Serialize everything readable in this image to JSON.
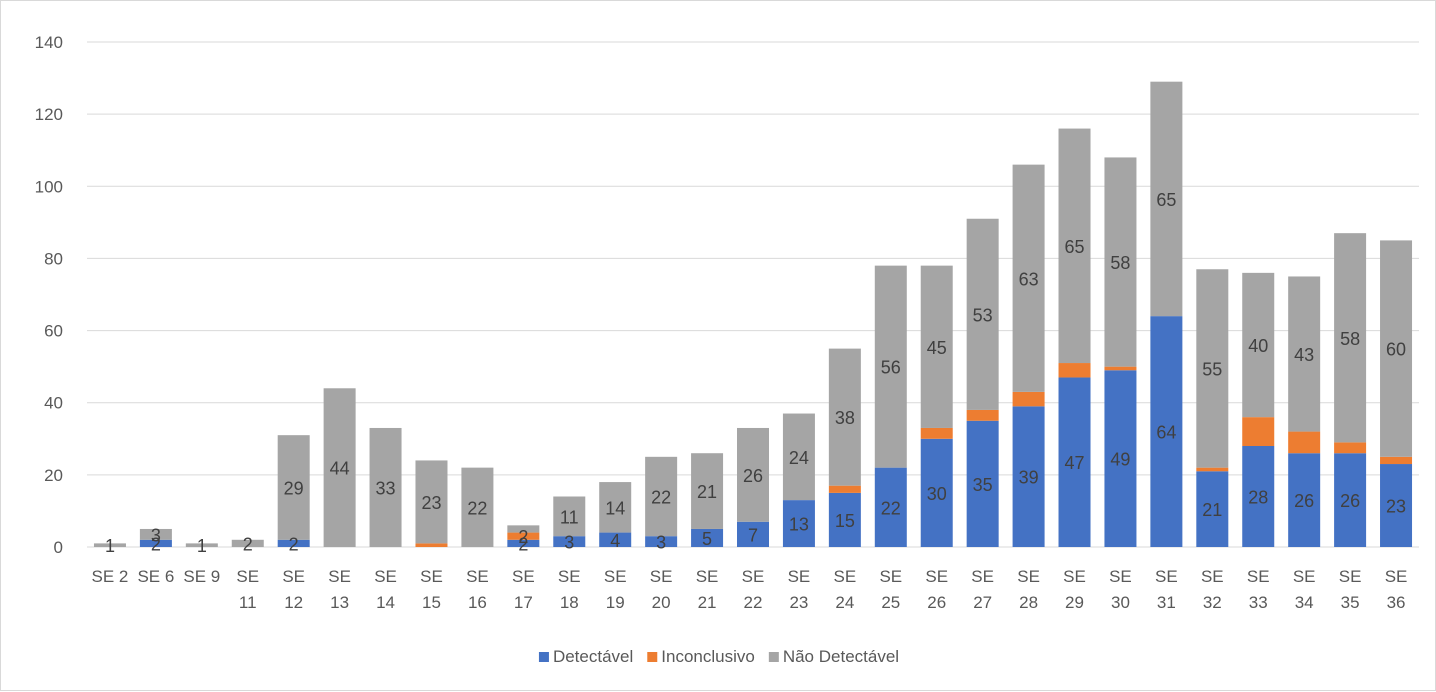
{
  "chart_data": {
    "type": "bar",
    "stacked": true,
    "title": "",
    "xlabel": "",
    "ylabel": "",
    "ylim": [
      0,
      140
    ],
    "yticks": [
      "0",
      "20",
      "40",
      "60",
      "80",
      "100",
      "120",
      "140"
    ],
    "grid": true,
    "legend_position": "bottom",
    "categories": [
      "SE 2",
      "SE 6",
      "SE 9",
      "SE 11",
      "SE 12",
      "SE 13",
      "SE 14",
      "SE 15",
      "SE 16",
      "SE 17",
      "SE 18",
      "SE 19",
      "SE 20",
      "SE 21",
      "SE 22",
      "SE 23",
      "SE 24",
      "SE 25",
      "SE 26",
      "SE 27",
      "SE 28",
      "SE 29",
      "SE 30",
      "SE 31",
      "SE 32",
      "SE 33",
      "SE 34",
      "SE 35",
      "SE 36"
    ],
    "category_lines": [
      [
        "SE 2"
      ],
      [
        "SE 6"
      ],
      [
        "SE 9"
      ],
      [
        "SE",
        "11"
      ],
      [
        "SE",
        "12"
      ],
      [
        "SE",
        "13"
      ],
      [
        "SE",
        "14"
      ],
      [
        "SE",
        "15"
      ],
      [
        "SE",
        "16"
      ],
      [
        "SE",
        "17"
      ],
      [
        "SE",
        "18"
      ],
      [
        "SE",
        "19"
      ],
      [
        "SE",
        "20"
      ],
      [
        "SE",
        "21"
      ],
      [
        "SE",
        "22"
      ],
      [
        "SE",
        "23"
      ],
      [
        "SE",
        "24"
      ],
      [
        "SE",
        "25"
      ],
      [
        "SE",
        "26"
      ],
      [
        "SE",
        "27"
      ],
      [
        "SE",
        "28"
      ],
      [
        "SE",
        "29"
      ],
      [
        "SE",
        "30"
      ],
      [
        "SE",
        "31"
      ],
      [
        "SE",
        "32"
      ],
      [
        "SE",
        "33"
      ],
      [
        "SE",
        "34"
      ],
      [
        "SE",
        "35"
      ],
      [
        "SE",
        "36"
      ]
    ],
    "series": [
      {
        "name": "Detectável",
        "color": "#4472C4",
        "values": [
          0,
          2,
          0,
          0,
          2,
          0,
          0,
          0,
          0,
          2,
          3,
          4,
          3,
          5,
          7,
          13,
          15,
          22,
          30,
          35,
          39,
          47,
          49,
          64,
          21,
          28,
          26,
          26,
          23
        ],
        "labels": [
          "",
          "2",
          "",
          "",
          "2",
          "",
          "",
          "",
          "",
          "2",
          "3",
          "4",
          "3",
          "5",
          "7",
          "13",
          "15",
          "22",
          "30",
          "35",
          "39",
          "47",
          "49",
          "64",
          "21",
          "28",
          "26",
          "26",
          "23"
        ]
      },
      {
        "name": "Inconclusivo",
        "color": "#ED7D31",
        "values": [
          0,
          0,
          0,
          0,
          0,
          0,
          0,
          1,
          0,
          2,
          0,
          0,
          0,
          0,
          0,
          0,
          2,
          0,
          3,
          3,
          4,
          4,
          1,
          0,
          1,
          8,
          6,
          3,
          2
        ],
        "labels": [
          "",
          "",
          "",
          "",
          "",
          "",
          "",
          "",
          "",
          "2",
          "",
          "",
          "",
          "",
          "",
          "",
          "",
          "",
          "",
          "",
          "",
          "",
          "",
          "",
          "",
          "",
          "",
          "",
          ""
        ]
      },
      {
        "name": "Não Detectável",
        "color": "#A5A5A5",
        "values": [
          1,
          3,
          1,
          2,
          29,
          44,
          33,
          23,
          22,
          2,
          11,
          14,
          22,
          21,
          26,
          24,
          38,
          56,
          45,
          53,
          63,
          65,
          58,
          65,
          55,
          40,
          43,
          58,
          60
        ],
        "labels": [
          "1",
          "3",
          "1",
          "2",
          "29",
          "44",
          "33",
          "23",
          "22",
          "",
          "11",
          "14",
          "22",
          "21",
          "26",
          "24",
          "38",
          "56",
          "45",
          "53",
          "63",
          "65",
          "58",
          "65",
          "55",
          "40",
          "43",
          "58",
          "60"
        ]
      }
    ]
  }
}
